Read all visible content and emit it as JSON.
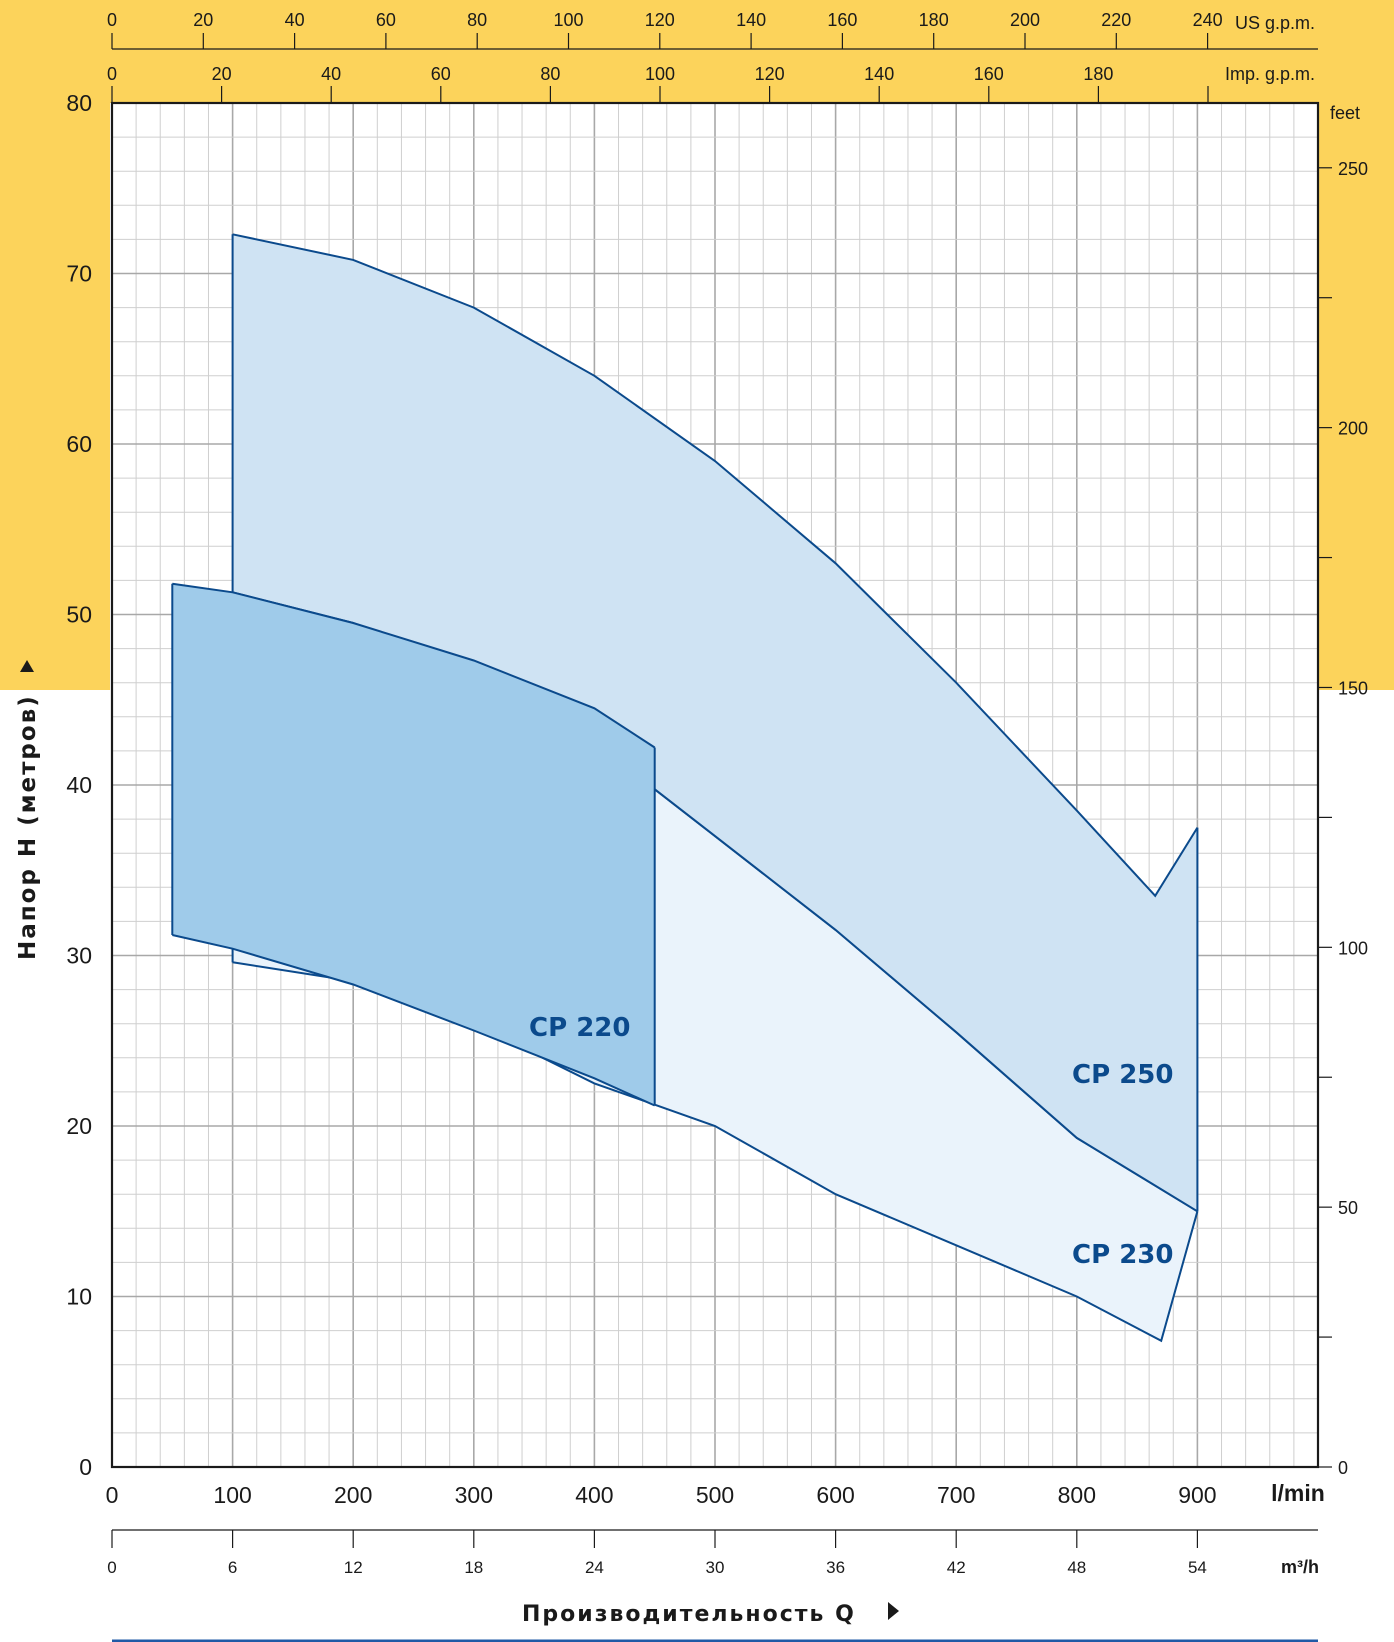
{
  "colors": {
    "banner": "#fcd35b",
    "grid_major": "#a8a8a8",
    "grid_minor": "#cfcfcf",
    "axis": "#1a1a1a",
    "curve": "#0b4a8c",
    "fill_cp250": "#cfe3f3",
    "fill_cp230": "#eaf3fb",
    "fill_cp220": "#9fcbea",
    "footer_rule": "#1f5aa6"
  },
  "chart_data": {
    "type": "area",
    "title": "",
    "xlabel": "Производительность Q",
    "ylabel": "Напор H (метров)",
    "xlim": [
      0,
      1000
    ],
    "ylim": [
      0,
      80
    ],
    "x_unit": "l/min",
    "grid": true,
    "x_ticks": [
      "0",
      "100",
      "200",
      "300",
      "400",
      "500",
      "600",
      "700",
      "800",
      "900"
    ],
    "y_ticks": [
      "0",
      "10",
      "20",
      "30",
      "40",
      "50",
      "60",
      "70",
      "80"
    ],
    "secondary_axes": {
      "us_gpm": {
        "unit": "US g.p.m.",
        "ticks": [
          "0",
          "20",
          "40",
          "60",
          "80",
          "100",
          "120",
          "140",
          "160",
          "180",
          "200",
          "220",
          "240"
        ]
      },
      "imp_gpm": {
        "unit": "Imp. g.p.m.",
        "ticks": [
          "0",
          "20",
          "40",
          "60",
          "80",
          "100",
          "120",
          "140",
          "160",
          "180"
        ]
      },
      "m3h": {
        "unit": "m³/h",
        "ticks": [
          "0",
          "6",
          "12",
          "18",
          "24",
          "30",
          "36",
          "42",
          "48",
          "54"
        ]
      },
      "feet": {
        "unit": "feet",
        "ticks": [
          "0",
          "50",
          "100",
          "150",
          "200",
          "250"
        ]
      }
    },
    "series": [
      {
        "name": "CP 250",
        "upper": [
          [
            100,
            72.3
          ],
          [
            200,
            70.8
          ],
          [
            300,
            68.0
          ],
          [
            400,
            64.0
          ],
          [
            500,
            59.0
          ],
          [
            600,
            53.0
          ],
          [
            700,
            46.0
          ],
          [
            800,
            38.5
          ],
          [
            865,
            33.5
          ],
          [
            900,
            37.5
          ]
        ],
        "lower": [
          [
            100,
            51.3
          ],
          [
            200,
            49.5
          ],
          [
            300,
            46.5
          ],
          [
            400,
            42.5
          ],
          [
            500,
            37.0
          ],
          [
            600,
            31.5
          ],
          [
            700,
            25.5
          ],
          [
            800,
            19.3
          ],
          [
            900,
            15.0
          ]
        ]
      },
      {
        "name": "CP 230",
        "upper": [
          [
            100,
            51.3
          ],
          [
            200,
            49.5
          ],
          [
            300,
            46.5
          ],
          [
            400,
            42.5
          ],
          [
            500,
            37.0
          ],
          [
            600,
            31.5
          ],
          [
            700,
            25.5
          ],
          [
            800,
            19.3
          ],
          [
            900,
            15.0
          ]
        ],
        "lower": [
          [
            100,
            29.6
          ],
          [
            200,
            28.5
          ],
          [
            300,
            26.0
          ],
          [
            400,
            22.5
          ],
          [
            500,
            20.0
          ],
          [
            600,
            16.0
          ],
          [
            700,
            13.0
          ],
          [
            800,
            10.0
          ],
          [
            870,
            7.4
          ],
          [
            900,
            15.0
          ]
        ]
      },
      {
        "name": "CP 220",
        "upper": [
          [
            50,
            51.8
          ],
          [
            100,
            51.3
          ],
          [
            200,
            49.5
          ],
          [
            300,
            47.3
          ],
          [
            400,
            44.5
          ],
          [
            450,
            42.2
          ]
        ],
        "lower": [
          [
            50,
            31.2
          ],
          [
            100,
            30.4
          ],
          [
            200,
            28.3
          ],
          [
            300,
            25.6
          ],
          [
            400,
            22.8
          ],
          [
            450,
            21.2
          ]
        ]
      }
    ]
  }
}
